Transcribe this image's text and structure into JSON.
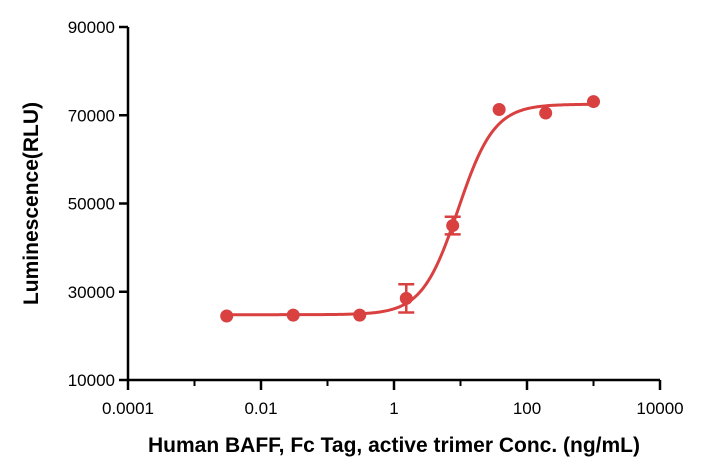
{
  "colors": {
    "series": "#d94040",
    "axis": "#000000",
    "background": "#ffffff"
  },
  "chart_data": {
    "type": "scatter",
    "title": "",
    "xlabel": "Human BAFF, Fc Tag, active trimer Conc. (ng/mL)",
    "ylabel": "Luminescence(RLU)",
    "x_scale": "log10",
    "xlim": [
      0.0001,
      10000
    ],
    "ylim": [
      10000,
      90000
    ],
    "x_ticks": [
      0.0001,
      0.01,
      1,
      100,
      10000
    ],
    "x_tick_labels": [
      "0.0001",
      "0.01",
      "1",
      "100",
      "10000"
    ],
    "y_ticks": [
      10000,
      30000,
      50000,
      70000,
      90000
    ],
    "y_tick_labels": [
      "10000",
      "30000",
      "50000",
      "70000",
      "90000"
    ],
    "grid": false,
    "legend": "none",
    "series": [
      {
        "x": [
          0.00305,
          0.0305,
          0.305,
          1.53,
          7.63,
          38.1,
          191,
          1000
        ],
        "y": [
          24500,
          24700,
          24700,
          28500,
          45000,
          71300,
          70500,
          73100
        ],
        "error": [
          0,
          0,
          0,
          3200,
          2000,
          0,
          0,
          0
        ]
      }
    ],
    "fit": {
      "model": "4PL",
      "bottom": 24800,
      "top": 72500,
      "ec50": 9.2,
      "hill": 1.6
    }
  }
}
